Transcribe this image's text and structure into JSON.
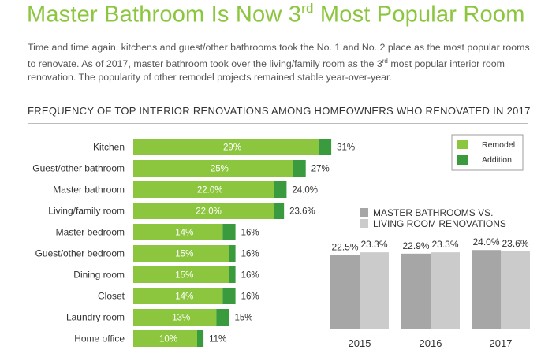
{
  "title": {
    "text": "Master Bathroom Is Now 3",
    "sup": "rd",
    "rest": " Most Popular Room"
  },
  "intro": {
    "part1": "Time and time again, kitchens and guest/other bathrooms took the No. 1 and No. 2 place as the most popular rooms to renovate. As of 2017, master bathroom took over the living/family room as the 3",
    "sup": "rd",
    "part2": " most popular interior room renovation. The popularity of other remodel projects remained stable year-over-year."
  },
  "colors": {
    "remodel": "#8cc63f",
    "addition": "#3a9a3e",
    "col_dark": "#a6a6a6",
    "col_light": "#cbcbcb",
    "accent": "#8cc63f"
  },
  "chart_data": [
    {
      "type": "bar",
      "orientation": "horizontal",
      "stacked": true,
      "title": "FREQUENCY OF TOP INTERIOR RENOVATIONS AMONG HOMEOWNERS WHO RENOVATED IN 2017",
      "categories": [
        "Kitchen",
        "Guest/other bathroom",
        "Master bathroom",
        "Living/family room",
        "Master bedroom",
        "Guest/other bedroom",
        "Dining room",
        "Closet",
        "Laundry room",
        "Home office"
      ],
      "series": [
        {
          "name": "Remodel",
          "values": [
            29,
            25,
            22.0,
            22.0,
            14,
            15,
            15,
            14,
            13,
            10
          ],
          "labels": [
            "29%",
            "25%",
            "22.0%",
            "22.0%",
            "14%",
            "15%",
            "15%",
            "14%",
            "13%",
            "10%"
          ]
        },
        {
          "name": "Addition",
          "values": [
            2,
            2,
            2.0,
            1.6,
            2,
            1,
            1,
            2,
            2,
            1
          ]
        }
      ],
      "totals": [
        "31%",
        "27%",
        "24.0%",
        "23.6%",
        "16%",
        "16%",
        "16%",
        "16%",
        "15%",
        "11%"
      ],
      "legend": "top-right"
    },
    {
      "type": "bar",
      "orientation": "vertical",
      "legend_lines": [
        "MASTER BATHROOMS VS.",
        "LIVING ROOM RENOVATIONS"
      ],
      "categories": [
        "2015",
        "2016",
        "2017"
      ],
      "series": [
        {
          "values": [
            22.5,
            22.9,
            24.0
          ],
          "labels": [
            "22.5%",
            "22.9%",
            "24.0%"
          ]
        },
        {
          "values": [
            23.3,
            23.3,
            23.6
          ],
          "labels": [
            "23.3%",
            "23.3%",
            "23.6%"
          ]
        }
      ]
    }
  ]
}
